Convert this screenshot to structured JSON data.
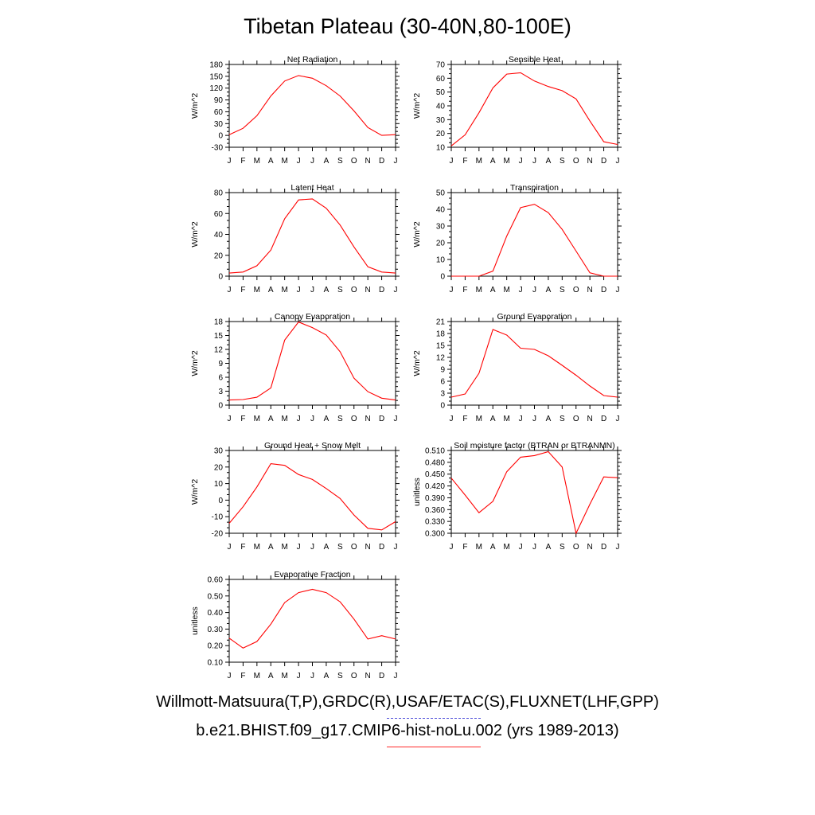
{
  "title": "Tibetan Plateau (30-40N,80-100E)",
  "legend": {
    "obs": "Willmott-Matsuura(T,P),GRDC(R),USAF/ETAC(S),FLUXNET(LHF,GPP)",
    "model": "b.e21.BHIST.f09_g17.CMIP6-hist-noLu.002 (yrs 1989-2013)"
  },
  "colors": {
    "model": "#ff0000",
    "obs": "#4a4ad8",
    "axis": "#000000"
  },
  "chart_data": [
    {
      "type": "line",
      "title": "Net Radiation",
      "ylabel": "W/m^2",
      "x": [
        "J",
        "F",
        "M",
        "A",
        "M",
        "J",
        "J",
        "A",
        "S",
        "O",
        "N",
        "D",
        "J"
      ],
      "ylim": [
        -30,
        180
      ],
      "yticks": [
        "-30",
        "0",
        "30",
        "60",
        "90",
        "120",
        "150",
        "180"
      ],
      "series": [
        {
          "values": [
            2,
            18,
            50,
            100,
            138,
            152,
            145,
            126,
            100,
            62,
            20,
            0,
            2
          ]
        }
      ]
    },
    {
      "type": "line",
      "title": "Sensible Heat",
      "ylabel": "W/m^2",
      "x": [
        "J",
        "F",
        "M",
        "A",
        "M",
        "J",
        "J",
        "A",
        "S",
        "O",
        "N",
        "D",
        "J"
      ],
      "ylim": [
        10,
        70
      ],
      "yticks": [
        "10",
        "20",
        "30",
        "40",
        "50",
        "60",
        "70"
      ],
      "series": [
        {
          "values": [
            11,
            19,
            35,
            53,
            63,
            64,
            58,
            54,
            51,
            45,
            29,
            14,
            12
          ]
        }
      ]
    },
    {
      "type": "line",
      "title": "Latent Heat",
      "ylabel": "W/m^2",
      "x": [
        "J",
        "F",
        "M",
        "A",
        "M",
        "J",
        "J",
        "A",
        "S",
        "O",
        "N",
        "D",
        "J"
      ],
      "ylim": [
        0,
        80
      ],
      "yticks": [
        "0",
        "20",
        "40",
        "60",
        "80"
      ],
      "series": [
        {
          "values": [
            3,
            4,
            10,
            25,
            55,
            73,
            74,
            65,
            49,
            28,
            9,
            4,
            3
          ]
        }
      ]
    },
    {
      "type": "line",
      "title": "Transpiration",
      "ylabel": "W/m^2",
      "x": [
        "J",
        "F",
        "M",
        "A",
        "M",
        "J",
        "J",
        "A",
        "S",
        "O",
        "N",
        "D",
        "J"
      ],
      "ylim": [
        0,
        50
      ],
      "yticks": [
        "0",
        "10",
        "20",
        "30",
        "40",
        "50"
      ],
      "series": [
        {
          "values": [
            0,
            0,
            0,
            3,
            24,
            41,
            43,
            38,
            28,
            15,
            2,
            0,
            0
          ]
        }
      ]
    },
    {
      "type": "line",
      "title": "Canopy Evaporation",
      "ylabel": "W/m^2",
      "x": [
        "J",
        "F",
        "M",
        "A",
        "M",
        "J",
        "J",
        "A",
        "S",
        "O",
        "N",
        "D",
        "J"
      ],
      "ylim": [
        0,
        18
      ],
      "yticks": [
        "0",
        "3",
        "6",
        "9",
        "12",
        "15",
        "18"
      ],
      "series": [
        {
          "values": [
            1.1,
            1.2,
            1.7,
            3.7,
            14,
            17.9,
            16.7,
            15.1,
            11.5,
            5.8,
            2.9,
            1.5,
            1.1
          ]
        }
      ]
    },
    {
      "type": "line",
      "title": "Ground Evaporation",
      "ylabel": "W/m^2",
      "x": [
        "J",
        "F",
        "M",
        "A",
        "M",
        "J",
        "J",
        "A",
        "S",
        "O",
        "N",
        "D",
        "J"
      ],
      "ylim": [
        0,
        21
      ],
      "yticks": [
        "0",
        "3",
        "6",
        "9",
        "12",
        "15",
        "18",
        "21"
      ],
      "series": [
        {
          "values": [
            2,
            2.8,
            8,
            19,
            17.6,
            14.3,
            14,
            12.4,
            10,
            7.5,
            4.8,
            2.4,
            2
          ]
        }
      ]
    },
    {
      "type": "line",
      "title": "Ground Heat + Snow Melt",
      "ylabel": "W/m^2",
      "x": [
        "J",
        "F",
        "M",
        "A",
        "M",
        "J",
        "J",
        "A",
        "S",
        "O",
        "N",
        "D",
        "J"
      ],
      "ylim": [
        -20,
        30
      ],
      "yticks": [
        "-20",
        "-10",
        "0",
        "10",
        "20",
        "30"
      ],
      "series": [
        {
          "values": [
            -14,
            -4,
            8,
            22,
            21,
            15.5,
            12.5,
            7,
            1,
            -9,
            -17,
            -18,
            -13
          ]
        }
      ]
    },
    {
      "type": "line",
      "title": "Soil moisture factor (BTRAN or BTRANMN)",
      "ylabel": "unitless",
      "x": [
        "J",
        "F",
        "M",
        "A",
        "M",
        "J",
        "J",
        "A",
        "S",
        "O",
        "N",
        "D",
        "J"
      ],
      "ylim": [
        0.3,
        0.51
      ],
      "yticks": [
        "0.300",
        "0.330",
        "0.360",
        "0.390",
        "0.420",
        "0.450",
        "0.480",
        "0.510"
      ],
      "series": [
        {
          "values": [
            0.44,
            0.397,
            0.352,
            0.381,
            0.456,
            0.493,
            0.497,
            0.507,
            0.468,
            0.3,
            0.374,
            0.443,
            0.441
          ]
        }
      ]
    },
    {
      "type": "line",
      "title": "Evaporative Fraction",
      "ylabel": "unitless",
      "x": [
        "J",
        "F",
        "M",
        "A",
        "M",
        "J",
        "J",
        "A",
        "S",
        "O",
        "N",
        "D",
        "J"
      ],
      "ylim": [
        0.1,
        0.6
      ],
      "yticks": [
        "0.10",
        "0.20",
        "0.30",
        "0.40",
        "0.50",
        "0.60"
      ],
      "series": [
        {
          "values": [
            0.245,
            0.185,
            0.225,
            0.33,
            0.46,
            0.52,
            0.54,
            0.52,
            0.465,
            0.36,
            0.24,
            0.26,
            0.24
          ]
        }
      ]
    }
  ]
}
